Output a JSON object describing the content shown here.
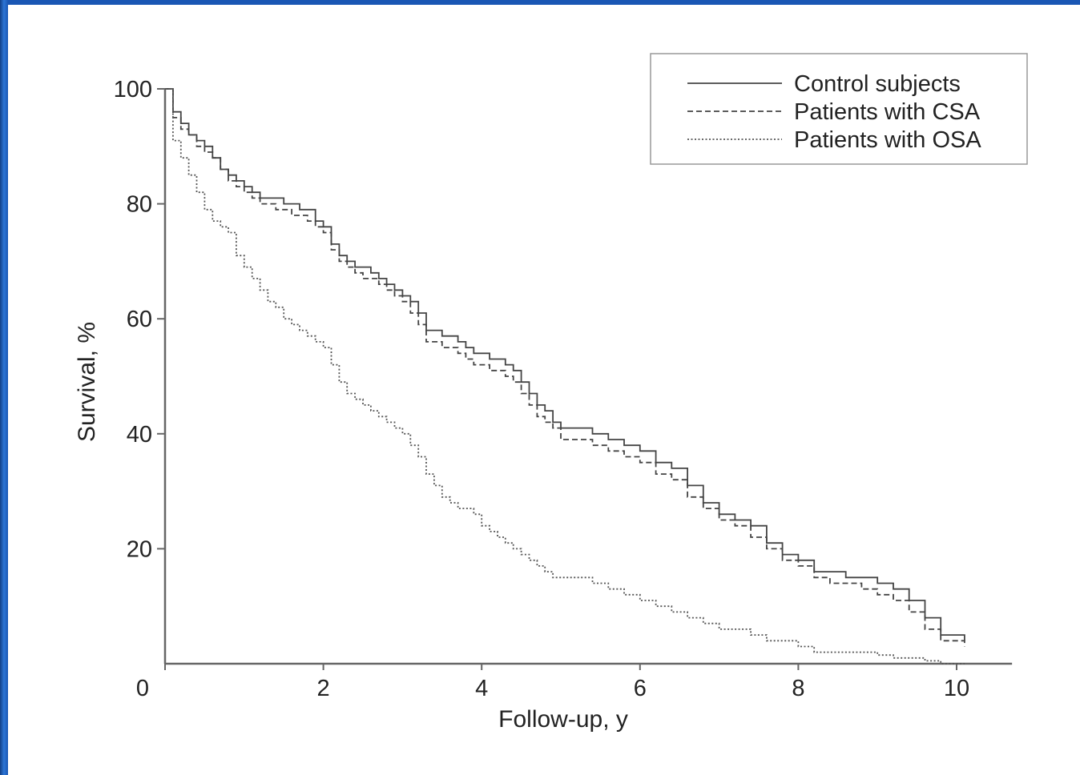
{
  "chart_data": {
    "type": "line",
    "title": "",
    "xlabel": "Follow-up, y",
    "ylabel": "Survival, %",
    "xlim": [
      0,
      10.7
    ],
    "ylim": [
      0,
      100
    ],
    "x_ticks": [
      0,
      2,
      4,
      6,
      8,
      10
    ],
    "y_ticks": [
      20,
      40,
      60,
      80,
      100
    ],
    "x_tick_labels": [
      "0",
      "2",
      "4",
      "6",
      "8",
      "10"
    ],
    "y_tick_labels": [
      "20",
      "40",
      "60",
      "80",
      "100"
    ],
    "grid": false,
    "legend_position": "top-right",
    "series": [
      {
        "name": "Control subjects",
        "style": "solid",
        "color": "#444444",
        "x": [
          0,
          0.1,
          0.2,
          0.3,
          0.4,
          0.5,
          0.6,
          0.7,
          0.8,
          0.9,
          1.0,
          1.1,
          1.2,
          1.3,
          1.4,
          1.5,
          1.6,
          1.7,
          1.8,
          1.9,
          2.0,
          2.1,
          2.2,
          2.3,
          2.4,
          2.5,
          2.6,
          2.7,
          2.8,
          2.9,
          3.0,
          3.1,
          3.2,
          3.3,
          3.4,
          3.5,
          3.6,
          3.7,
          3.8,
          3.9,
          4.0,
          4.1,
          4.2,
          4.3,
          4.4,
          4.5,
          4.6,
          4.7,
          4.8,
          4.9,
          5.0,
          5.2,
          5.4,
          5.6,
          5.8,
          6.0,
          6.2,
          6.4,
          6.6,
          6.8,
          7.0,
          7.2,
          7.4,
          7.6,
          7.8,
          8.0,
          8.2,
          8.4,
          8.6,
          8.8,
          9.0,
          9.2,
          9.4,
          9.6,
          9.8,
          10.1
        ],
        "values": [
          100,
          96,
          94,
          92,
          91,
          90,
          88,
          86,
          85,
          84,
          83,
          82,
          81,
          81,
          81,
          80,
          80,
          79,
          79,
          77,
          76,
          73,
          71,
          70,
          69,
          69,
          68,
          67,
          66,
          65,
          64,
          63,
          61,
          58,
          58,
          57,
          57,
          56,
          55,
          54,
          54,
          53,
          53,
          52,
          51,
          49,
          47,
          45,
          44,
          42,
          41,
          41,
          40,
          39,
          38,
          37,
          35,
          34,
          31,
          28,
          26,
          25,
          24,
          21,
          19,
          18,
          16,
          16,
          15,
          15,
          14,
          13,
          11,
          8,
          5,
          4
        ]
      },
      {
        "name": "Patients with CSA",
        "style": "dashed",
        "color": "#444444",
        "x": [
          0,
          0.1,
          0.2,
          0.3,
          0.4,
          0.5,
          0.6,
          0.7,
          0.8,
          0.9,
          1.0,
          1.1,
          1.2,
          1.3,
          1.4,
          1.5,
          1.6,
          1.7,
          1.8,
          1.9,
          2.0,
          2.1,
          2.2,
          2.3,
          2.4,
          2.5,
          2.6,
          2.7,
          2.8,
          2.9,
          3.0,
          3.1,
          3.2,
          3.3,
          3.4,
          3.5,
          3.6,
          3.7,
          3.8,
          3.9,
          4.0,
          4.1,
          4.2,
          4.3,
          4.4,
          4.5,
          4.6,
          4.7,
          4.8,
          4.9,
          5.0,
          5.2,
          5.4,
          5.6,
          5.8,
          6.0,
          6.2,
          6.4,
          6.6,
          6.8,
          7.0,
          7.2,
          7.4,
          7.6,
          7.8,
          8.0,
          8.2,
          8.4,
          8.6,
          8.8,
          9.0,
          9.2,
          9.4,
          9.6,
          9.8,
          10.1
        ],
        "values": [
          100,
          95,
          93,
          92,
          90,
          89,
          88,
          86,
          84,
          83,
          82,
          81,
          80,
          80,
          79,
          79,
          78,
          78,
          77,
          76,
          75,
          72,
          70,
          69,
          68,
          67,
          67,
          66,
          65,
          64,
          63,
          61,
          59,
          56,
          56,
          55,
          55,
          54,
          53,
          52,
          52,
          51,
          51,
          50,
          49,
          47,
          45,
          43,
          42,
          41,
          39,
          39,
          38,
          37,
          36,
          35,
          33,
          32,
          29,
          27,
          25,
          24,
          22,
          20,
          18,
          17,
          15,
          14,
          14,
          13,
          12,
          11,
          9,
          6,
          4,
          3
        ]
      },
      {
        "name": "Patients with OSA",
        "style": "dotted",
        "color": "#555555",
        "x": [
          0,
          0.1,
          0.2,
          0.3,
          0.4,
          0.5,
          0.6,
          0.7,
          0.8,
          0.9,
          1.0,
          1.1,
          1.2,
          1.3,
          1.4,
          1.5,
          1.6,
          1.7,
          1.8,
          1.9,
          2.0,
          2.1,
          2.2,
          2.3,
          2.4,
          2.5,
          2.6,
          2.7,
          2.8,
          2.9,
          3.0,
          3.1,
          3.2,
          3.3,
          3.4,
          3.5,
          3.6,
          3.7,
          3.8,
          3.9,
          4.0,
          4.1,
          4.2,
          4.3,
          4.4,
          4.5,
          4.6,
          4.7,
          4.8,
          4.9,
          5.0,
          5.2,
          5.4,
          5.6,
          5.8,
          6.0,
          6.2,
          6.4,
          6.6,
          6.8,
          7.0,
          7.2,
          7.4,
          7.6,
          7.8,
          8.0,
          8.2,
          8.4,
          8.6,
          8.8,
          9.0,
          9.2,
          9.4,
          9.6,
          9.8,
          10.1
        ],
        "values": [
          100,
          91,
          88,
          85,
          82,
          79,
          77,
          76,
          75,
          71,
          69,
          67,
          65,
          63,
          62,
          60,
          59,
          58,
          57,
          56,
          55,
          52,
          49,
          47,
          46,
          45,
          44,
          43,
          42,
          41,
          40,
          38,
          36,
          33,
          31,
          29,
          28,
          27,
          27,
          26,
          24,
          23,
          22,
          21,
          20,
          19,
          18,
          17,
          16,
          15,
          15,
          15,
          14,
          13,
          12,
          11,
          10,
          9,
          8,
          7,
          6,
          6,
          5,
          4,
          4,
          3,
          2,
          2,
          2,
          2,
          1.5,
          1,
          1,
          0.5,
          0,
          0
        ]
      }
    ]
  }
}
